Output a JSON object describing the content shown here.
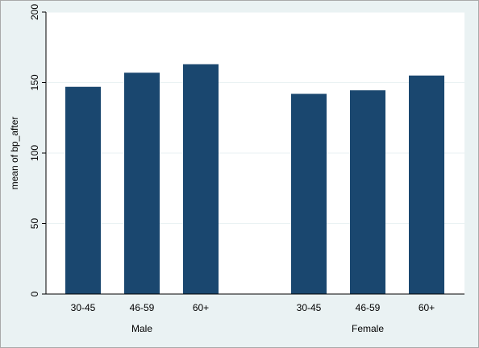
{
  "chart_data": {
    "type": "bar",
    "ylabel": "mean of bp_after",
    "ylim": [
      0,
      200
    ],
    "yticks": [
      0,
      50,
      100,
      150,
      200
    ],
    "grid": true,
    "groups": [
      {
        "name": "Male",
        "categories": [
          "30-45",
          "46-59",
          "60+"
        ],
        "values": [
          147,
          157,
          163
        ]
      },
      {
        "name": "Female",
        "categories": [
          "30-45",
          "46-59",
          "60+"
        ],
        "values": [
          142,
          144.5,
          155
        ]
      }
    ],
    "colors": {
      "bar": "#1a476f",
      "plot_background": "#ffffff",
      "outer_background": "#eaf2f3",
      "gridline": "#eaf2f3",
      "axis": "#000000",
      "border": "#a9a9a9"
    }
  }
}
